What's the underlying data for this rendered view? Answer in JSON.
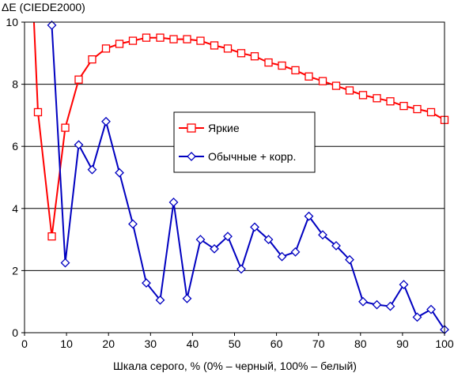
{
  "chart_data": {
    "type": "line",
    "title": "",
    "ylabel": "ΔE (CIEDE2000)",
    "xlabel": "Шкала серого, % (0% – черный, 100% – белый)",
    "xlim": [
      0,
      100
    ],
    "ylim": [
      0,
      10
    ],
    "xticks": [
      "0",
      "10",
      "20",
      "30",
      "40",
      "50",
      "60",
      "70",
      "80",
      "90",
      "100"
    ],
    "yticks": [
      "0",
      "2",
      "4",
      "6",
      "8",
      "10"
    ],
    "grid": "horizontal",
    "legend_position": "center",
    "series": [
      {
        "name": "Яркие",
        "color": "#ff0000",
        "marker": "square",
        "x": [
          3.2,
          6.5,
          9.7,
          12.9,
          16.1,
          19.4,
          22.6,
          25.8,
          29.0,
          32.3,
          35.5,
          38.7,
          41.9,
          45.2,
          48.4,
          51.6,
          54.8,
          58.1,
          61.3,
          64.5,
          67.7,
          71.0,
          74.2,
          77.4,
          80.6,
          83.9,
          87.1,
          90.3,
          93.5,
          96.8,
          100
        ],
        "y": [
          7.1,
          3.1,
          6.6,
          8.15,
          8.8,
          9.15,
          9.3,
          9.4,
          9.5,
          9.5,
          9.45,
          9.45,
          9.4,
          9.25,
          9.15,
          9.0,
          8.9,
          8.7,
          8.6,
          8.45,
          8.25,
          8.1,
          7.95,
          7.8,
          7.65,
          7.55,
          7.45,
          7.3,
          7.2,
          7.1,
          6.85
        ]
      },
      {
        "name": "Обычные + корр.",
        "color": "#0000c0",
        "marker": "diamond",
        "x": [
          6.5,
          9.7,
          12.9,
          16.1,
          19.4,
          22.6,
          25.8,
          29.0,
          32.3,
          35.5,
          38.7,
          41.9,
          45.2,
          48.4,
          51.6,
          54.8,
          58.1,
          61.3,
          64.5,
          67.7,
          71.0,
          74.2,
          77.4,
          80.6,
          83.9,
          87.1,
          90.3,
          93.5,
          96.8,
          100
        ],
        "y": [
          9.9,
          2.25,
          6.05,
          5.25,
          6.8,
          5.15,
          3.5,
          1.6,
          1.05,
          4.2,
          1.1,
          3.0,
          2.7,
          3.1,
          2.05,
          3.4,
          3.0,
          2.45,
          2.6,
          3.75,
          3.15,
          2.8,
          2.35,
          1.0,
          0.9,
          0.85,
          1.55,
          0.5,
          0.75,
          0.1
        ]
      }
    ]
  }
}
